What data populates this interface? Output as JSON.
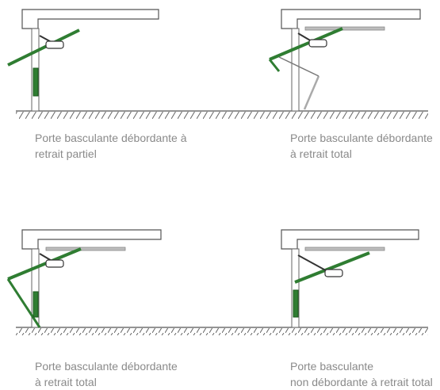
{
  "colors": {
    "frame": "#5a5a5a",
    "panel": "#2f7d32",
    "panel_edge": "#1c5a1f",
    "rail": "#bdbdbd",
    "caption": "#8a8a8a"
  },
  "panels": [
    {
      "id": "partial",
      "caption": [
        "Porte basculante débordante à",
        "retrait partiel"
      ],
      "has_rail": false,
      "has_support_leg": false
    },
    {
      "id": "total-1",
      "caption": [
        "Porte basculante débordante",
        "à retrait total"
      ],
      "has_rail": true,
      "has_support_leg": true
    },
    {
      "id": "total-2",
      "caption": [
        "Porte basculante débordante",
        "à retrait total"
      ],
      "has_rail": true,
      "has_support_leg": true
    },
    {
      "id": "non-debordante",
      "caption": [
        "Porte basculante",
        "non débordante à retrait total"
      ],
      "has_rail": true,
      "has_support_leg": false
    }
  ]
}
